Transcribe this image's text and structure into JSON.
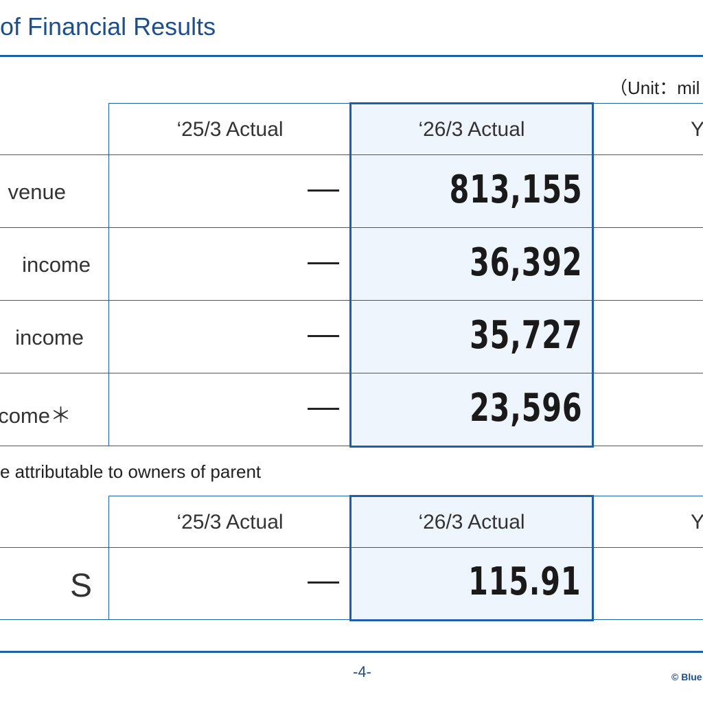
{
  "header": {
    "title": "of Financial Results"
  },
  "unit_note": "（Unit：mil",
  "table1": {
    "col_prev": "‘25/3 Actual",
    "col_curr": "‘26/3 Actual",
    "col_next": "Y",
    "rows": [
      {
        "label": "venue",
        "prev": "—",
        "curr": "813,155"
      },
      {
        "label": "income",
        "prev": "—",
        "curr": "36,392"
      },
      {
        "label": "income",
        "prev": "—",
        "curr": "35,727"
      },
      {
        "label": "come＊",
        "prev": "—",
        "curr": "23,596"
      }
    ]
  },
  "footnote": "e attributable to owners of parent",
  "table2": {
    "col_prev": "‘25/3 Actual",
    "col_curr": "‘26/3 Actual",
    "col_next": "Y",
    "rows": [
      {
        "label": "S",
        "prev": "—",
        "curr": "115.91"
      }
    ]
  },
  "footer": {
    "page": "-4-",
    "copyright": "© Blue"
  },
  "colors": {
    "accent": "#1a5fa8",
    "highlight_bg": "#eef5fc",
    "title": "#1f4e8c"
  }
}
